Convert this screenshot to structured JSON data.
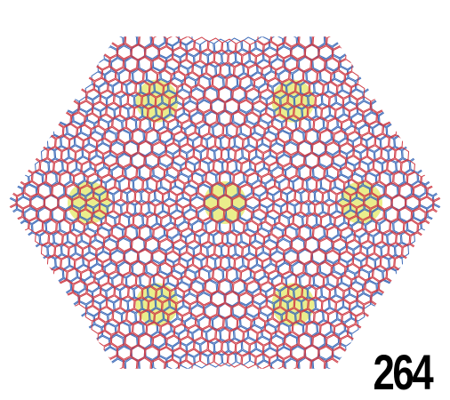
{
  "figure": {
    "label": "264",
    "colors": {
      "lattice_a": "#cf3c46",
      "lattice_b": "#3c6ab8",
      "highlight": "#e8ec80",
      "background": "#ffffff"
    },
    "lattice": {
      "shape": "hexagon",
      "cell": "hexagon",
      "layers": 2,
      "relative_rotation_deg": 8
    }
  }
}
